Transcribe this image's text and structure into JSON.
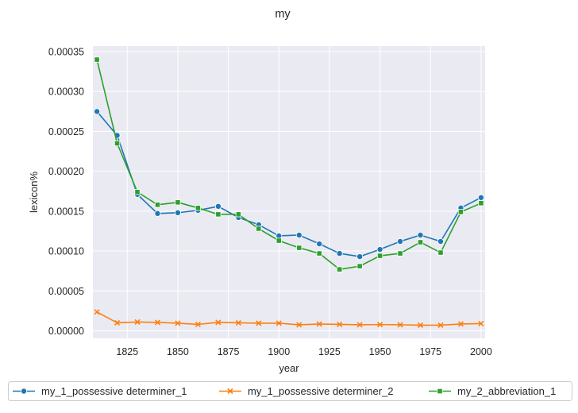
{
  "chart_data": {
    "type": "line",
    "title": "my",
    "xlabel": "year",
    "ylabel": "lexicon%",
    "xlim": [
      1808,
      2002
    ],
    "ylim": [
      -9.5e-06,
      0.000357
    ],
    "x_ticks": [
      1825,
      1850,
      1875,
      1900,
      1925,
      1950,
      1975,
      2000
    ],
    "x_tick_labels": [
      "1825",
      "1850",
      "1875",
      "1900",
      "1925",
      "1950",
      "1975",
      "2000"
    ],
    "y_ticks": [
      0,
      5e-05,
      0.0001,
      0.00015,
      0.0002,
      0.00025,
      0.0003,
      0.00035
    ],
    "y_tick_labels": [
      "0.00000",
      "0.00005",
      "0.00010",
      "0.00015",
      "0.00020",
      "0.00025",
      "0.00030",
      "0.00035"
    ],
    "grid": true,
    "legend_position": "bottom",
    "x": [
      1810,
      1820,
      1830,
      1840,
      1850,
      1860,
      1870,
      1880,
      1890,
      1900,
      1910,
      1920,
      1930,
      1940,
      1950,
      1960,
      1970,
      1980,
      1990,
      2000
    ],
    "series": [
      {
        "name": "my_1_possessive determiner_1",
        "color": "#1f77b4",
        "marker": "circle",
        "values": [
          0.000275,
          0.000245,
          0.000171,
          0.000147,
          0.000148,
          0.000151,
          0.000156,
          0.000142,
          0.000133,
          0.000119,
          0.00012,
          0.000109,
          9.7e-05,
          9.3e-05,
          0.000102,
          0.000112,
          0.00012,
          0.000112,
          0.000154,
          0.000167
        ]
      },
      {
        "name": "my_1_possessive determiner_2",
        "color": "#ff7f0e",
        "marker": "x",
        "values": [
          2.35e-05,
          1e-05,
          1.1e-05,
          1.05e-05,
          9.5e-06,
          8e-06,
          1.05e-05,
          1e-05,
          9.5e-06,
          9.5e-06,
          7.5e-06,
          8.5e-06,
          8e-06,
          7.5e-06,
          7.8e-06,
          7.5e-06,
          7e-06,
          7e-06,
          8.5e-06,
          9e-06
        ]
      },
      {
        "name": "my_2_abbreviation_1",
        "color": "#2ca02c",
        "marker": "square",
        "values": [
          0.00034,
          0.000235,
          0.000174,
          0.000158,
          0.000161,
          0.000154,
          0.000146,
          0.000146,
          0.000128,
          0.000113,
          0.000104,
          9.7e-05,
          7.7e-05,
          8.1e-05,
          9.4e-05,
          9.7e-05,
          0.000111,
          9.8e-05,
          0.000149,
          0.00016
        ]
      }
    ]
  }
}
